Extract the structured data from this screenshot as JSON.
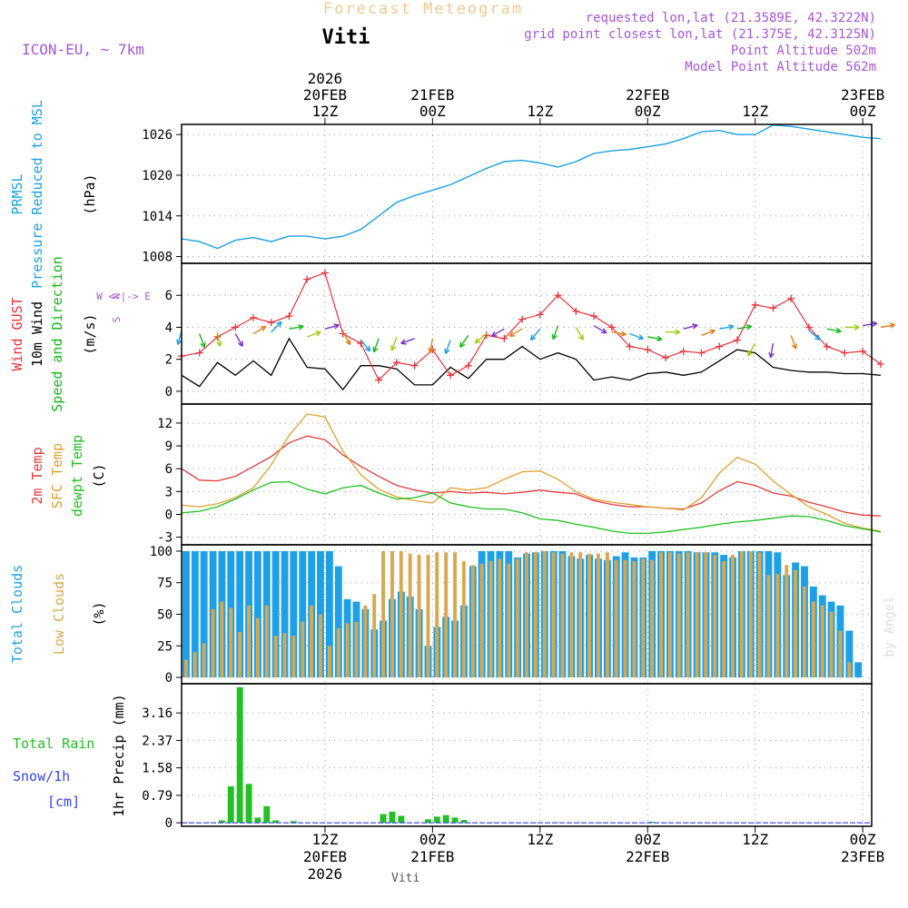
{
  "header": {
    "app_title": "Forecast Meteogram",
    "location": "Viti",
    "model": "ICON-EU, ~ 7km",
    "requested": "requested lon,lat (21.3589E, 42.3222N)",
    "grid_point": "grid point closest lon,lat (21.375E, 42.3125N)",
    "point_altitude": "Point Altitude 502m",
    "model_altitude": "Model Point Altitude 562m"
  },
  "footer": {
    "location": "Viti",
    "watermark": "by Angel"
  },
  "time_axis": {
    "range_hours": [
      -8,
      30.5
    ],
    "top_ticks": [
      {
        "h": 0,
        "lines": [
          "2026",
          "20FEB",
          "12Z"
        ]
      },
      {
        "h": 6,
        "lines": [
          "21FEB",
          "00Z"
        ]
      },
      {
        "h": 12,
        "lines": [
          "12Z"
        ]
      },
      {
        "h": 18,
        "lines": [
          "22FEB",
          "00Z"
        ]
      },
      {
        "h": 24,
        "lines": [
          "12Z"
        ]
      },
      {
        "h": 30,
        "lines": [
          "23FEB",
          "00Z"
        ]
      }
    ],
    "bottom_ticks": [
      {
        "h": 0,
        "lines": [
          "12Z",
          "20FEB",
          "2026"
        ]
      },
      {
        "h": 6,
        "lines": [
          "00Z",
          "21FEB"
        ]
      },
      {
        "h": 12,
        "lines": [
          "12Z"
        ]
      },
      {
        "h": 18,
        "lines": [
          "00Z",
          "22FEB"
        ]
      },
      {
        "h": 24,
        "lines": [
          "12Z"
        ]
      },
      {
        "h": 30,
        "lines": [
          "00Z",
          "23FEB"
        ]
      }
    ]
  },
  "colors": {
    "pressure": "#1ba1e2",
    "gust": "#e8333a",
    "wind": "#000000",
    "direction": "#18b818",
    "t2m": "#e83a3a",
    "sfc": "#e0a030",
    "dewpt": "#20c020",
    "total_clouds": "#1ea0e8",
    "low_clouds": "#d8a850",
    "rain": "#22c022",
    "snow": "#3344ee",
    "header": "#f0c890",
    "meta": "#a855d8"
  },
  "chart_data": [
    {
      "type": "line",
      "title": "PRMSL Pressure Reduced to MSL",
      "ylabel": "(hPa)",
      "panel_labels": [
        "PRMSL",
        "Pressure Reduced to MSL"
      ],
      "ylim": [
        1007,
        1027.5
      ],
      "yticks": [
        1008,
        1014,
        1020,
        1026
      ],
      "series": [
        {
          "name": "PRMSL",
          "x": [
            -8,
            -7,
            -6,
            -5,
            -4,
            -3,
            -2,
            -1,
            0,
            1,
            2,
            3,
            4,
            5,
            6,
            7,
            8,
            9,
            10,
            11,
            12,
            13,
            14,
            15,
            16,
            17,
            18,
            19,
            20,
            21,
            22,
            23,
            24,
            25,
            26,
            27,
            28,
            29,
            30,
            31
          ],
          "values": [
            1010.6,
            1010.2,
            1009.2,
            1010.4,
            1010.8,
            1010.2,
            1011.0,
            1011.0,
            1010.6,
            1011.0,
            1012.0,
            1014.0,
            1016.0,
            1017.0,
            1017.8,
            1018.6,
            1019.8,
            1021.0,
            1022.0,
            1022.2,
            1021.8,
            1021.2,
            1022.0,
            1023.2,
            1023.6,
            1023.8,
            1024.2,
            1024.6,
            1025.4,
            1026.4,
            1026.6,
            1026.0,
            1026.0,
            1027.4,
            1027.2,
            1026.8,
            1026.4,
            1026.0,
            1025.6,
            1025.4
          ]
        }
      ]
    },
    {
      "type": "line",
      "title": "Wind GUST / 10m Wind Speed and Direction",
      "ylabel": "(m/s)",
      "panel_labels": [
        "Wind GUST",
        "10m Wind",
        "Speed and Direction"
      ],
      "compass": [
        "N",
        "W <-|-> E",
        "S"
      ],
      "ylim": [
        -0.8,
        8
      ],
      "yticks": [
        0,
        2,
        4,
        6
      ],
      "series": [
        {
          "name": "Wind GUST",
          "x": [
            -8,
            -7,
            -6,
            -5,
            -4,
            -3,
            -2,
            -1,
            0,
            1,
            2,
            3,
            4,
            5,
            6,
            7,
            8,
            9,
            10,
            11,
            12,
            13,
            14,
            15,
            16,
            17,
            18,
            19,
            20,
            21,
            22,
            23,
            24,
            25,
            26,
            27,
            28,
            29,
            30,
            31
          ],
          "values": [
            2.2,
            2.4,
            3.4,
            4.0,
            4.6,
            4.3,
            4.7,
            7.0,
            7.4,
            3.6,
            3.0,
            0.7,
            1.8,
            1.6,
            2.6,
            1.0,
            1.6,
            3.5,
            3.3,
            4.5,
            4.8,
            6.0,
            5.0,
            4.7,
            4.0,
            2.8,
            2.6,
            2.1,
            2.5,
            2.4,
            2.8,
            3.2,
            5.4,
            5.2,
            5.8,
            4.0,
            2.8,
            2.4,
            2.5,
            1.7
          ]
        },
        {
          "name": "10m Wind",
          "x": [
            -8,
            -7,
            -6,
            -5,
            -4,
            -3,
            -2,
            -1,
            0,
            1,
            2,
            3,
            4,
            5,
            6,
            7,
            8,
            9,
            10,
            11,
            12,
            13,
            14,
            15,
            16,
            17,
            18,
            19,
            20,
            21,
            22,
            23,
            24,
            25,
            26,
            27,
            28,
            29,
            30,
            31
          ],
          "values": [
            1.0,
            0.3,
            1.8,
            1.0,
            1.9,
            1.0,
            3.3,
            1.5,
            1.4,
            0.1,
            1.6,
            1.6,
            1.4,
            0.4,
            0.4,
            1.5,
            0.8,
            2.0,
            2.0,
            2.8,
            2.0,
            2.4,
            2.0,
            0.7,
            0.9,
            0.7,
            1.1,
            1.2,
            1.0,
            1.2,
            1.9,
            2.6,
            2.4,
            1.5,
            1.3,
            1.2,
            1.2,
            1.1,
            1.1,
            1.0
          ]
        }
      ],
      "direction_arrows": {
        "y": [
          3.8,
          3.6,
          3.7,
          3.6,
          3.6,
          3.7,
          3.9,
          3.4,
          3.9,
          3.7,
          3.2,
          3.3,
          3.4,
          3.3,
          3.3,
          3.2,
          3.5,
          3.6,
          3.9,
          3.9,
          3.9,
          4.1,
          4.0,
          4.1,
          3.7,
          3.6,
          3.4,
          3.7,
          3.9,
          3.5,
          3.9,
          3.9,
          3.0,
          3.0,
          3.5,
          3.8,
          3.9,
          4.0,
          4.1,
          4.0
        ],
        "dir_deg": [
          195,
          160,
          170,
          150,
          60,
          45,
          80,
          70,
          75,
          150,
          140,
          200,
          200,
          250,
          190,
          200,
          215,
          230,
          240,
          240,
          220,
          200,
          150,
          120,
          100,
          110,
          100,
          90,
          75,
          70,
          80,
          80,
          210,
          190,
          160,
          130,
          100,
          90,
          80,
          80
        ]
      }
    },
    {
      "type": "line",
      "title": "2m Temp / SFC Temp / dewpt Temp",
      "ylabel": "(C)",
      "panel_labels": [
        "2m Temp",
        "SFC Temp",
        "dewpt Temp"
      ],
      "ylim": [
        -4,
        14.5
      ],
      "yticks": [
        -3,
        0,
        3,
        6,
        9,
        12
      ],
      "series": [
        {
          "name": "2m Temp",
          "x": [
            -8,
            -7,
            -6,
            -5,
            -4,
            -3,
            -2,
            -1,
            0,
            1,
            2,
            3,
            4,
            5,
            6,
            7,
            8,
            9,
            10,
            11,
            12,
            13,
            14,
            15,
            16,
            17,
            18,
            19,
            20,
            21,
            22,
            23,
            24,
            25,
            26,
            27,
            28,
            29,
            30,
            31
          ],
          "values": [
            6.0,
            4.5,
            4.4,
            5.0,
            6.3,
            7.6,
            9.4,
            10.3,
            9.8,
            7.8,
            6.3,
            5.0,
            3.8,
            3.2,
            2.8,
            3.0,
            2.8,
            2.9,
            2.7,
            2.9,
            3.2,
            2.9,
            2.7,
            1.8,
            1.3,
            1.0,
            1.0,
            0.8,
            0.7,
            1.5,
            3.1,
            4.3,
            3.8,
            2.8,
            2.4,
            1.6,
            1.0,
            0.3,
            -0.1,
            -0.2
          ]
        },
        {
          "name": "SFC Temp",
          "x": [
            -8,
            -7,
            -6,
            -5,
            -4,
            -3,
            -2,
            -1,
            0,
            1,
            2,
            3,
            4,
            5,
            6,
            7,
            8,
            9,
            10,
            11,
            12,
            13,
            14,
            15,
            16,
            17,
            18,
            19,
            20,
            21,
            22,
            23,
            24,
            25,
            26,
            27,
            28,
            29,
            30,
            31
          ],
          "values": [
            1.2,
            1.0,
            1.4,
            2.2,
            3.5,
            6.5,
            10.4,
            13.2,
            12.8,
            8.3,
            5.2,
            3.3,
            2.3,
            1.8,
            1.5,
            3.5,
            3.2,
            3.5,
            4.6,
            5.6,
            5.7,
            4.6,
            3.0,
            2.0,
            1.6,
            1.3,
            1.0,
            0.8,
            0.6,
            2.2,
            5.4,
            7.5,
            6.6,
            4.4,
            2.6,
            1.0,
            0.0,
            -1.2,
            -1.8,
            -2.2
          ]
        },
        {
          "name": "dewpt Temp",
          "x": [
            -8,
            -7,
            -6,
            -5,
            -4,
            -3,
            -2,
            -1,
            0,
            1,
            2,
            3,
            4,
            5,
            6,
            7,
            8,
            9,
            10,
            11,
            12,
            13,
            14,
            15,
            16,
            17,
            18,
            19,
            20,
            21,
            22,
            23,
            24,
            25,
            26,
            27,
            28,
            29,
            30,
            31
          ],
          "values": [
            0.2,
            0.4,
            1.0,
            2.0,
            3.2,
            4.2,
            4.3,
            3.3,
            2.7,
            3.5,
            3.8,
            2.8,
            2.0,
            2.2,
            2.8,
            1.5,
            1.0,
            0.7,
            0.7,
            0.2,
            -0.6,
            -0.8,
            -1.3,
            -1.7,
            -2.2,
            -2.5,
            -2.5,
            -2.3,
            -2.0,
            -1.7,
            -1.3,
            -1.0,
            -0.8,
            -0.5,
            -0.2,
            -0.3,
            -0.8,
            -1.5,
            -1.9,
            -2.3
          ]
        }
      ]
    },
    {
      "type": "bar",
      "title": "Total Clouds / Low Clouds",
      "ylabel": "(%)",
      "panel_labels": [
        "Total Clouds",
        "Low Clouds"
      ],
      "ylim": [
        -5,
        105
      ],
      "yticks": [
        0,
        25,
        50,
        75,
        100
      ],
      "x": [
        -8,
        -7.5,
        -7,
        -6.5,
        -6,
        -5.5,
        -5,
        -4.5,
        -4,
        -3.5,
        -3,
        -2.5,
        -2,
        -1.5,
        -1,
        -0.5,
        0,
        0.5,
        1,
        1.5,
        2,
        2.5,
        3,
        3.5,
        4,
        4.5,
        5,
        5.5,
        6,
        6.5,
        7,
        7.5,
        8,
        8.5,
        9,
        9.5,
        10,
        10.5,
        11,
        11.5,
        12,
        12.5,
        13,
        13.5,
        14,
        14.5,
        15,
        15.5,
        16,
        16.5,
        17,
        17.5,
        18,
        18.5,
        19,
        19.5,
        20,
        20.5,
        21,
        21.5,
        22,
        22.5,
        23,
        23.5,
        24,
        24.5,
        25,
        25.5,
        26,
        26.5,
        27,
        27.5,
        28,
        28.5,
        29,
        29.5,
        30,
        30.5
      ],
      "series": [
        {
          "name": "Total Clouds",
          "values": [
            100,
            100,
            100,
            100,
            100,
            100,
            100,
            100,
            100,
            100,
            100,
            100,
            100,
            100,
            100,
            100,
            100,
            88,
            62,
            60,
            54,
            38,
            45,
            62,
            68,
            64,
            54,
            25,
            40,
            48,
            45,
            57,
            88,
            100,
            100,
            100,
            100,
            95,
            98,
            99,
            100,
            100,
            100,
            96,
            94,
            97,
            94,
            93,
            96,
            99,
            95,
            95,
            100,
            100,
            100,
            100,
            100,
            99,
            99,
            99,
            97,
            95,
            100,
            100,
            100,
            100,
            99,
            81,
            91,
            88,
            72,
            65,
            60,
            57,
            37,
            12,
            0,
            0
          ]
        },
        {
          "name": "Low Clouds",
          "values": [
            14,
            20,
            27,
            54,
            60,
            55,
            36,
            57,
            47,
            57,
            33,
            35,
            33,
            44,
            57,
            50,
            25,
            39,
            43,
            44,
            57,
            66,
            100,
            100,
            100,
            98,
            97,
            97,
            99,
            99,
            99,
            92,
            89,
            90,
            92,
            94,
            90,
            94,
            99,
            99,
            100,
            99,
            98,
            99,
            99,
            98,
            98,
            99,
            93,
            93,
            92,
            94,
            93,
            99,
            99,
            98,
            99,
            99,
            99,
            97,
            92,
            97,
            100,
            100,
            99,
            81,
            82,
            89,
            85,
            72,
            60,
            57,
            52,
            37,
            12,
            0,
            0,
            0
          ]
        }
      ]
    },
    {
      "type": "bar",
      "title": "Total Rain / Snow/1h [cm]",
      "ylabel": "1hr Precip (mm)",
      "panel_labels": [
        "Total Rain",
        "Snow/1h",
        "[cm]"
      ],
      "ylim": [
        -0.1,
        4.0
      ],
      "yticks": [
        "0",
        "0.79",
        "1.58",
        "2.37",
        "3.16"
      ],
      "x": [
        -6,
        -5.5,
        -5,
        -4.5,
        -4,
        -3.5,
        -3,
        -2.5,
        -2,
        -1.5,
        -1,
        -0.5,
        0,
        0.5,
        1,
        1.5,
        2,
        2.5,
        3,
        3.5,
        4,
        4.5,
        5,
        5.5,
        6,
        6.5,
        7,
        7.5,
        8,
        8.5,
        9,
        9.5,
        10,
        10.5,
        11,
        11.5,
        12,
        12.5,
        13,
        13.5,
        14,
        14.5,
        15,
        15.5,
        16,
        16.5,
        17,
        17.5,
        18,
        18.5,
        19,
        19.5,
        20,
        20.5,
        21,
        21.5,
        22,
        22.5,
        23,
        23.5,
        24
      ],
      "series": [
        {
          "name": "Total Rain",
          "values": [
            0.07,
            1.05,
            3.9,
            1.12,
            0.15,
            0.48,
            0.07,
            0,
            0.05,
            0,
            0,
            0,
            0,
            0,
            0,
            0,
            0,
            0,
            0.25,
            0.32,
            0.2,
            0,
            0,
            0.1,
            0.18,
            0.22,
            0.15,
            0.08,
            0,
            0,
            0,
            0,
            0,
            0,
            0,
            0,
            0,
            0,
            0,
            0,
            0,
            0,
            0,
            0,
            0,
            0,
            0,
            0,
            0.03,
            0,
            0,
            0,
            0,
            0,
            0,
            0,
            0,
            0,
            0,
            0,
            0
          ]
        }
      ]
    }
  ]
}
